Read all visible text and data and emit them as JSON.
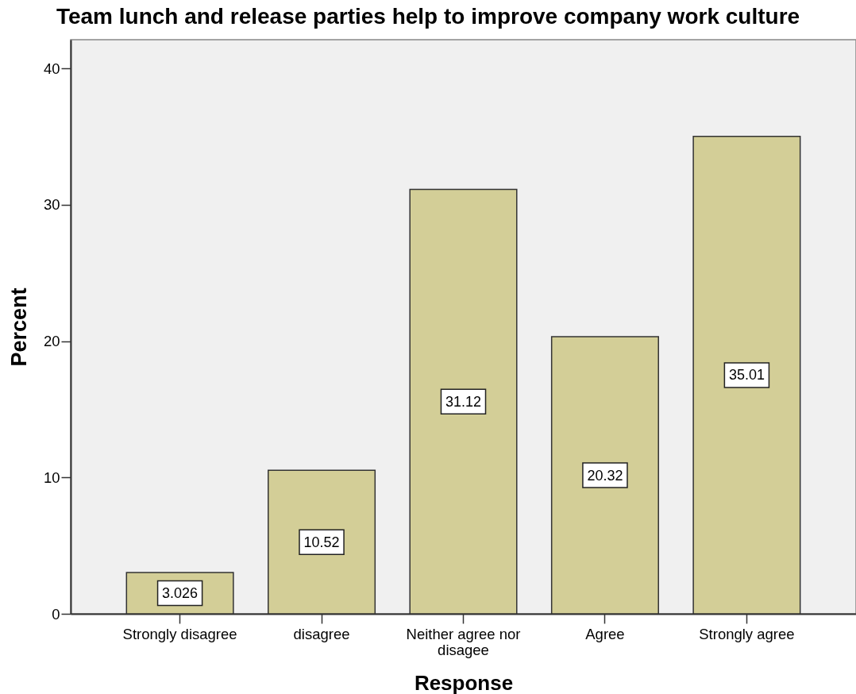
{
  "chart_data": {
    "type": "bar",
    "title": "Team lunch and release parties help to improve company work culture",
    "xlabel": "Response",
    "ylabel": "Percent",
    "categories": [
      "Strongly disagree",
      "disagree",
      "Neither agree nor disagee",
      "Agree",
      "Strongly agree"
    ],
    "values": [
      3.026,
      10.52,
      31.12,
      20.32,
      35.01
    ],
    "color": "#d3ce97",
    "ylim": [
      0,
      42.1
    ],
    "yticks": [
      0,
      10,
      20,
      30,
      40
    ],
    "data_labels": true
  }
}
